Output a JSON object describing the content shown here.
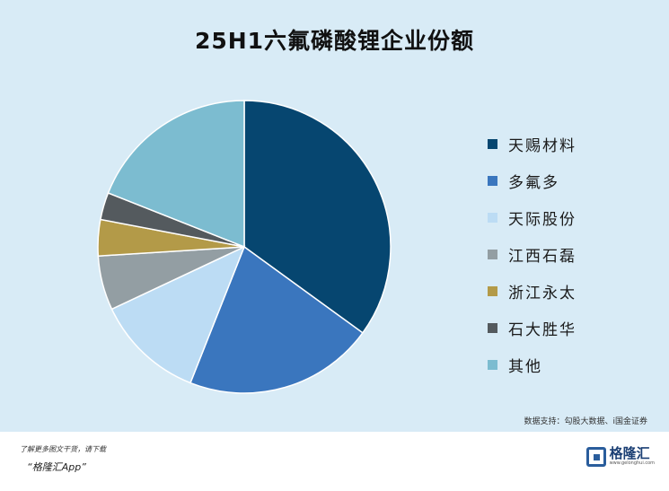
{
  "chart_data": {
    "type": "pie",
    "title": "25H1六氟磷酸锂企业份额",
    "categories": [
      "天赐材料",
      "多氟多",
      "天际股份",
      "江西石磊",
      "浙江永太",
      "石大胜华",
      "其他"
    ],
    "values": [
      35,
      21,
      12,
      6,
      4,
      3,
      19
    ],
    "colors": [
      "#064670",
      "#3a76be",
      "#bcdcf4",
      "#939ea3",
      "#b39a48",
      "#545a5e",
      "#7cbcd0"
    ],
    "legend_position": "right"
  },
  "source": "数据支持：勾股大数据、i国金证券",
  "footer": {
    "promo_line1": "了解更多图文干货，请下载",
    "promo_line2": "“格隆汇App”",
    "brand_name": "格隆汇",
    "brand_url": "www.gelonghui.com",
    "brand_icon": "gelonghui-logo-icon"
  }
}
